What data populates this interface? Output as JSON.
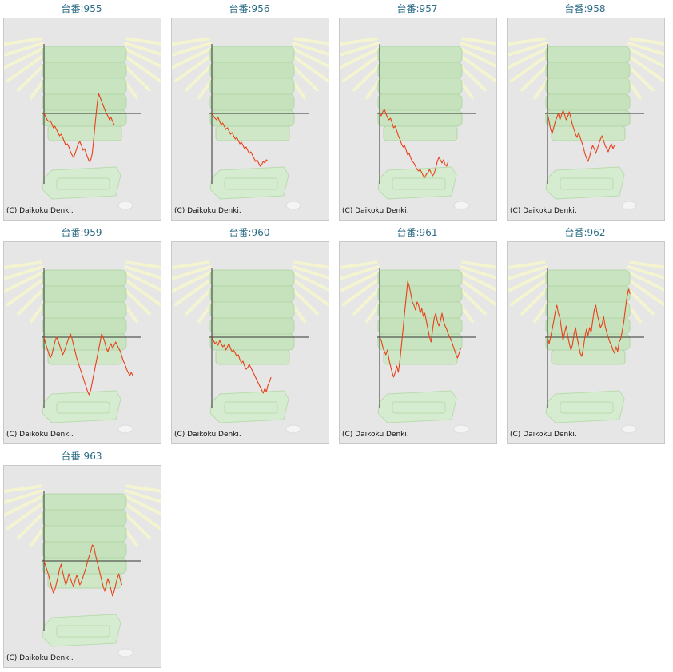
{
  "copyright": "(C) Daikoku Denki.",
  "colors": {
    "line": "#e8401a",
    "axis": "#333333",
    "title": "#2b6c86",
    "frame_bg": "#e6e6e6"
  },
  "machines": [
    {
      "label": "台番:955",
      "chart_data": {
        "type": "line",
        "values": [
          0,
          -4,
          -8,
          -10,
          -9,
          -13,
          -18,
          -16,
          -20,
          -24,
          -28,
          -26,
          -30,
          -35,
          -40,
          -38,
          -42,
          -48,
          -52,
          -55,
          -50,
          -44,
          -38,
          -35,
          -40,
          -46,
          -44,
          -50,
          -55,
          -60,
          -58,
          -50,
          -30,
          -10,
          10,
          25,
          20,
          15,
          10,
          5,
          0,
          -3,
          -8,
          -5,
          -10,
          -14
        ]
      }
    },
    {
      "label": "台番:956",
      "chart_data": {
        "type": "line",
        "values": [
          0,
          -3,
          -6,
          -8,
          -5,
          -10,
          -14,
          -12,
          -16,
          -20,
          -18,
          -22,
          -26,
          -24,
          -28,
          -32,
          -30,
          -34,
          -38,
          -36,
          -40,
          -44,
          -42,
          -46,
          -50,
          -48,
          -52,
          -56,
          -60,
          -58,
          -62,
          -66,
          -64,
          -60,
          -62,
          -58,
          -60
        ]
      }
    },
    {
      "label": "台番:957",
      "chart_data": {
        "type": "line",
        "values": [
          0,
          -3,
          2,
          5,
          0,
          -5,
          -8,
          -6,
          -12,
          -18,
          -16,
          -22,
          -28,
          -32,
          -38,
          -42,
          -40,
          -46,
          -52,
          -50,
          -56,
          -60,
          -62,
          -66,
          -70,
          -72,
          -70,
          -74,
          -78,
          -80,
          -76,
          -74,
          -70,
          -74,
          -78,
          -75,
          -68,
          -60,
          -55,
          -58,
          -62,
          -58,
          -64,
          -66,
          -60
        ]
      }
    },
    {
      "label": "台番:958",
      "chart_data": {
        "type": "line",
        "values": [
          0,
          -10,
          -20,
          -25,
          -18,
          -10,
          -5,
          0,
          -8,
          -2,
          4,
          -2,
          -8,
          -4,
          2,
          -6,
          -14,
          -20,
          -26,
          -30,
          -24,
          -30,
          -36,
          -42,
          -50,
          -56,
          -60,
          -54,
          -46,
          -40,
          -44,
          -50,
          -44,
          -38,
          -32,
          -28,
          -34,
          -40,
          -44,
          -48,
          -42,
          -38,
          -44,
          -40
        ]
      }
    },
    {
      "label": "台番:959",
      "chart_data": {
        "type": "line",
        "values": [
          0,
          -8,
          -14,
          -20,
          -26,
          -22,
          -14,
          -6,
          0,
          -4,
          -10,
          -16,
          -22,
          -18,
          -12,
          -6,
          0,
          4,
          -2,
          -10,
          -18,
          -26,
          -32,
          -38,
          -44,
          -50,
          -56,
          -62,
          -68,
          -72,
          -66,
          -56,
          -46,
          -36,
          -26,
          -16,
          -6,
          4,
          0,
          -6,
          -14,
          -18,
          -12,
          -8,
          -14,
          -10,
          -6,
          -10,
          -14,
          -18,
          -24,
          -30,
          -34,
          -40,
          -44,
          -48,
          -44,
          -48
        ]
      }
    },
    {
      "label": "台番:960",
      "chart_data": {
        "type": "line",
        "values": [
          0,
          -4,
          -8,
          -6,
          -10,
          -4,
          -8,
          -12,
          -10,
          -16,
          -12,
          -8,
          -14,
          -18,
          -16,
          -20,
          -24,
          -22,
          -28,
          -32,
          -30,
          -36,
          -40,
          -38,
          -34,
          -38,
          -42,
          -46,
          -50,
          -54,
          -58,
          -62,
          -66,
          -70,
          -64,
          -68,
          -60,
          -56,
          -50
        ]
      }
    },
    {
      "label": "台番:961",
      "chart_data": {
        "type": "line",
        "values": [
          0,
          -4,
          -12,
          -18,
          -22,
          -16,
          -28,
          -36,
          -44,
          -50,
          -44,
          -36,
          -44,
          -30,
          -10,
          10,
          30,
          50,
          70,
          64,
          54,
          44,
          40,
          34,
          44,
          40,
          30,
          36,
          26,
          30,
          20,
          10,
          0,
          -6,
          10,
          24,
          30,
          20,
          14,
          20,
          30,
          20,
          14,
          10,
          4,
          0,
          -4,
          -10,
          -16,
          -22,
          -26,
          -20,
          -14
        ]
      }
    },
    {
      "label": "台番:962",
      "chart_data": {
        "type": "line",
        "values": [
          0,
          -8,
          0,
          10,
          20,
          32,
          40,
          30,
          24,
          10,
          -4,
          6,
          14,
          2,
          -8,
          -16,
          -10,
          4,
          12,
          0,
          -10,
          -20,
          -24,
          -14,
          0,
          10,
          2,
          12,
          6,
          20,
          34,
          40,
          28,
          20,
          12,
          16,
          26,
          14,
          6,
          0,
          -6,
          -10,
          -16,
          -20,
          -12,
          -18,
          -6,
          -2,
          8,
          20,
          36,
          50,
          60,
          54
        ]
      }
    },
    {
      "label": "台番:963",
      "chart_data": {
        "type": "line",
        "values": [
          0,
          -6,
          -12,
          -18,
          -26,
          -34,
          -40,
          -36,
          -28,
          -20,
          -10,
          -4,
          -14,
          -22,
          -30,
          -24,
          -16,
          -22,
          -28,
          -32,
          -24,
          -18,
          -22,
          -30,
          -26,
          -20,
          -14,
          -8,
          0,
          6,
          12,
          20,
          18,
          8,
          0,
          -8,
          -16,
          -24,
          -32,
          -38,
          -30,
          -22,
          -28,
          -36,
          -44,
          -38,
          -30,
          -22,
          -16,
          -24,
          -30
        ]
      }
    }
  ]
}
